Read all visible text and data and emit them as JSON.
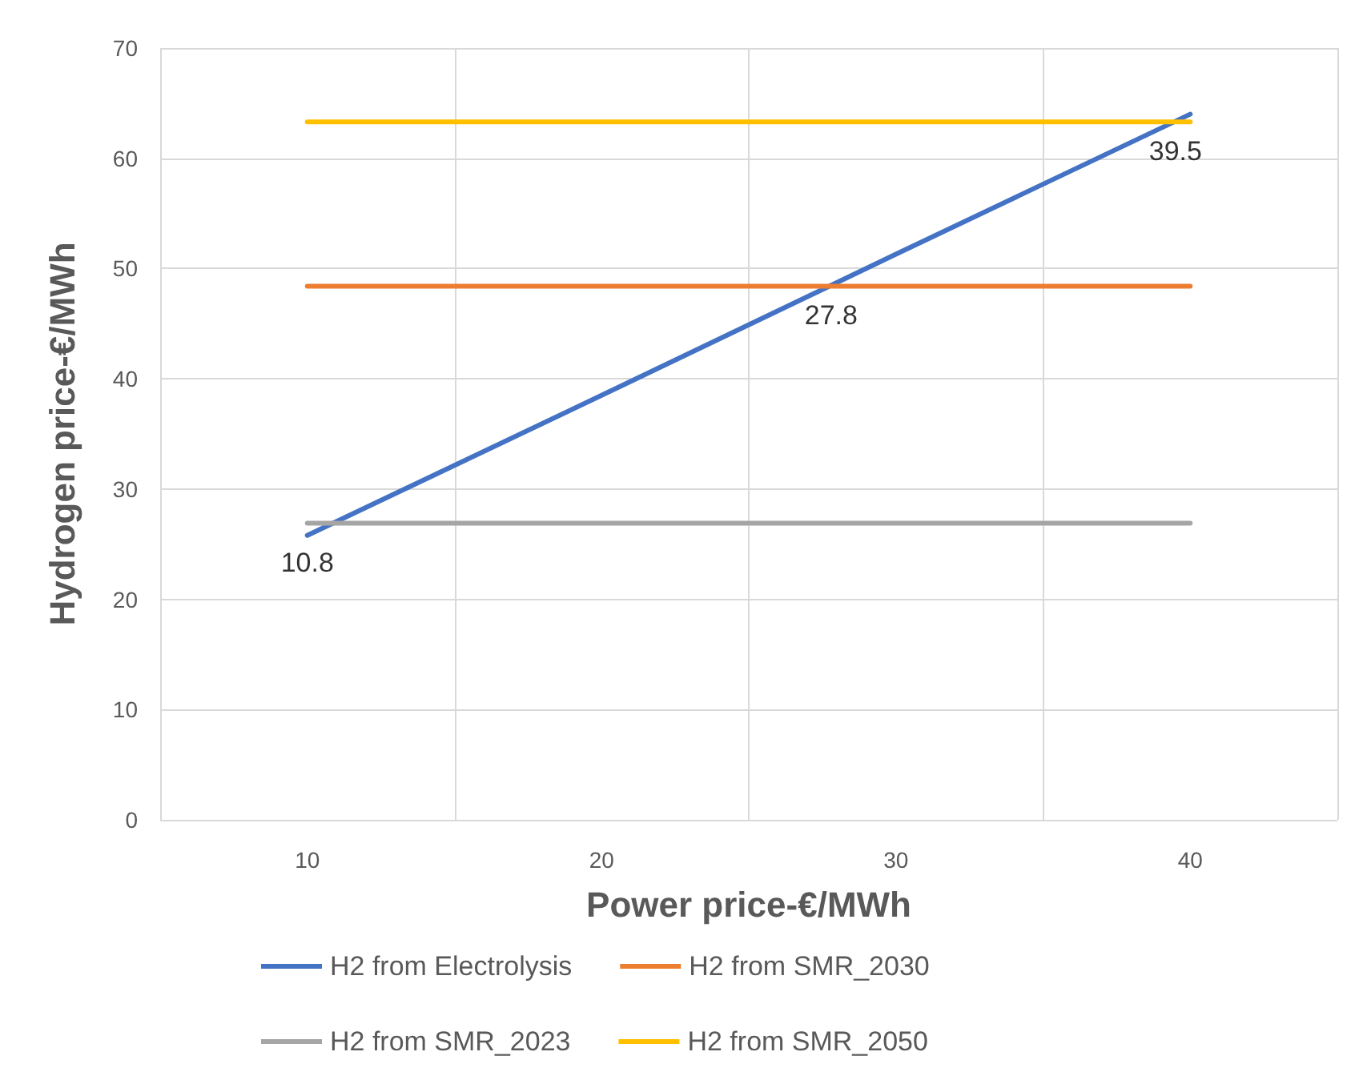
{
  "chart_data": {
    "type": "line",
    "xlabel": "Power price-€/MWh",
    "ylabel": "Hydrogen price-€/MWh",
    "x": [
      10,
      20,
      30,
      40
    ],
    "series": [
      {
        "name": "H2 from Electrolysis",
        "color": "#4472c4",
        "values": [
          25.8,
          38.5,
          51.3,
          64.0
        ]
      },
      {
        "name": "H2 from SMR_2030",
        "color": "#ed7d31",
        "values": [
          48.4,
          48.4,
          48.4,
          48.4
        ]
      },
      {
        "name": "H2 from SMR_2023",
        "color": "#a5a5a5",
        "values": [
          26.9,
          26.9,
          26.9,
          26.9
        ]
      },
      {
        "name": "H2 from SMR_2050",
        "color": "#ffc000",
        "values": [
          63.3,
          63.3,
          63.3,
          63.3
        ]
      }
    ],
    "xlim": [
      5,
      45
    ],
    "xticks": [
      {
        "value": 5,
        "label": null
      },
      10,
      {
        "value": 15,
        "label": null
      },
      20,
      {
        "value": 25,
        "label": null
      },
      30,
      {
        "value": 35,
        "label": null
      },
      40,
      {
        "value": 45,
        "label": null
      }
    ],
    "ylim": [
      0,
      70
    ],
    "yticks": [
      0,
      10,
      20,
      30,
      40,
      50,
      60,
      70
    ],
    "grid": true,
    "legend": "bottom",
    "marker": "none",
    "line_style": "solid",
    "annotations": [
      {
        "text": "10.8",
        "x": 10,
        "y": 26
      },
      {
        "text": "27.8",
        "x": 27.8,
        "y": 48.4
      },
      {
        "text": "39.5",
        "x": 39.5,
        "y": 63.3
      }
    ]
  }
}
